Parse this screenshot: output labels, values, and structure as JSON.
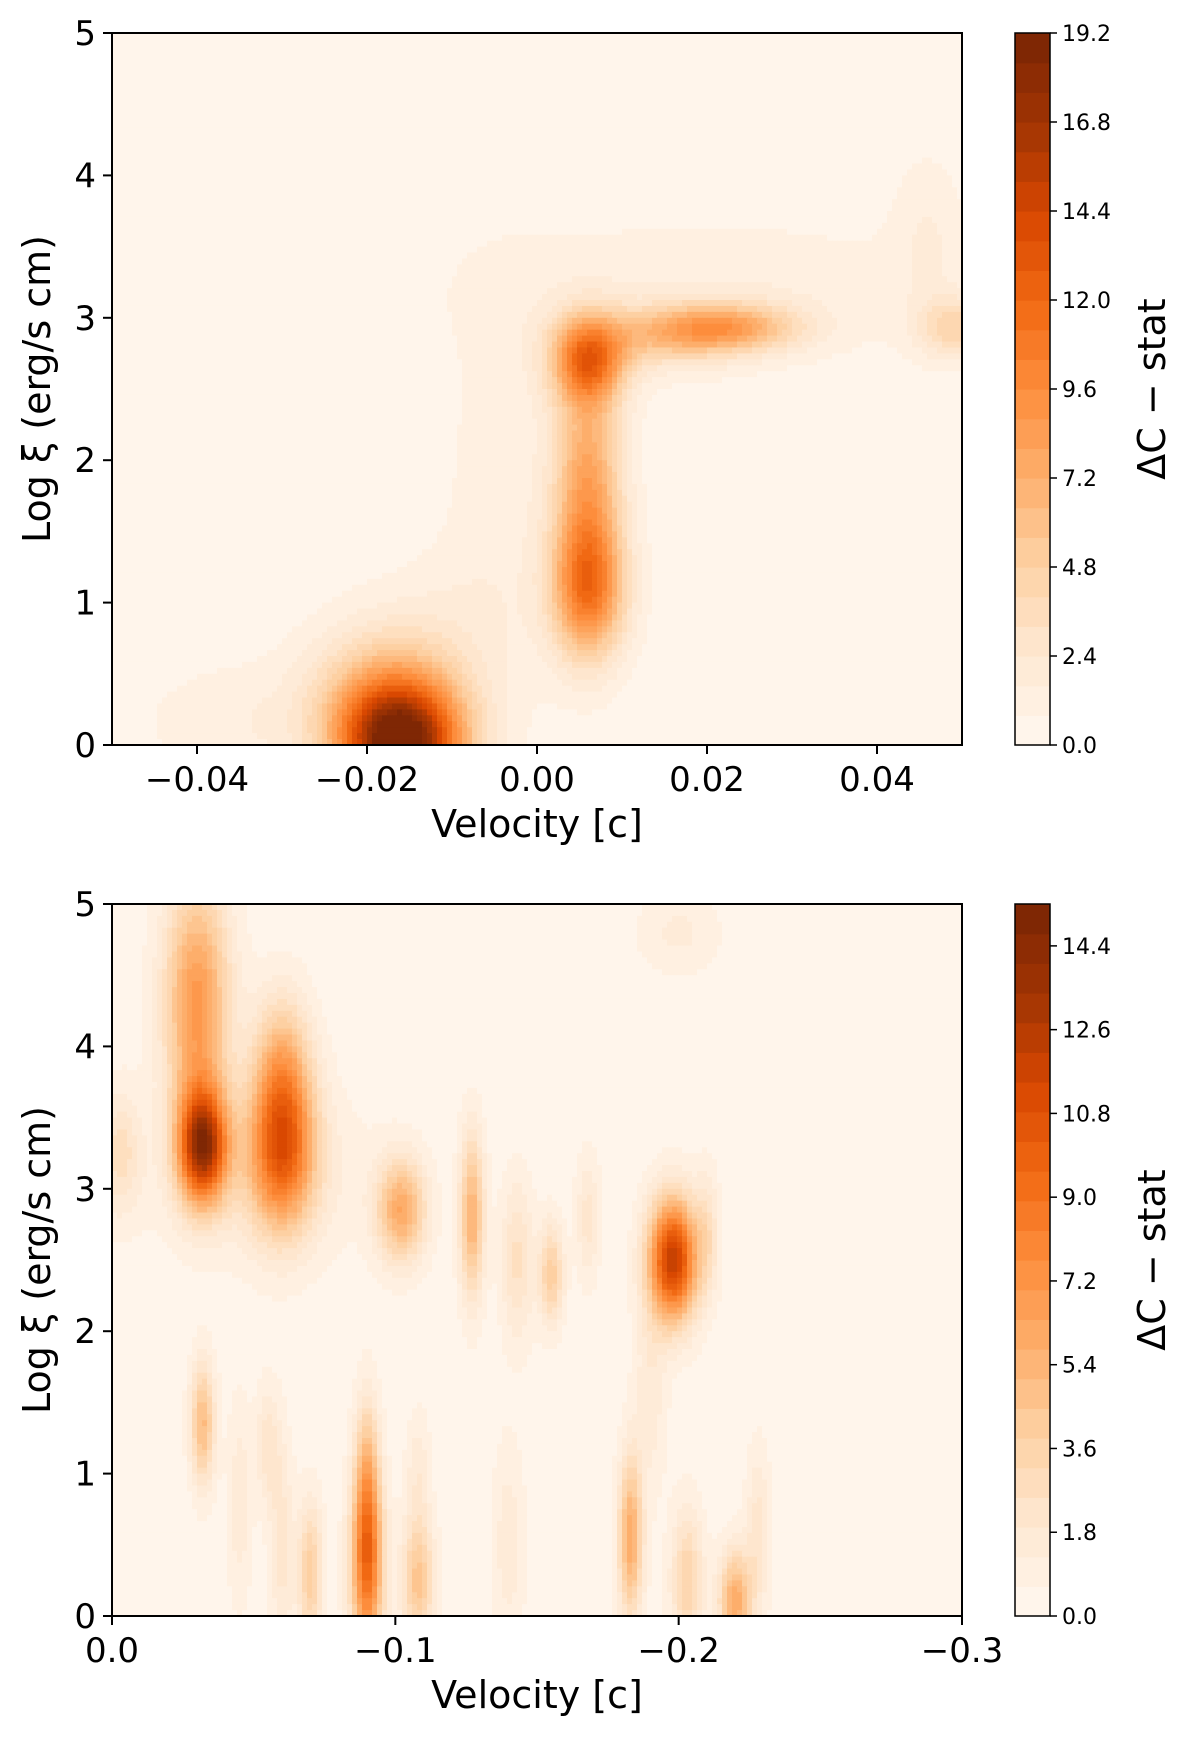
{
  "colors": {
    "cmap": [
      "#fff5eb",
      "#fee6ce",
      "#fdd0a2",
      "#fdae6b",
      "#fd8d3c",
      "#f16913",
      "#d94801",
      "#a63603",
      "#7f2704"
    ],
    "axis": "#000000"
  },
  "chart_data": [
    {
      "type": "heatmap",
      "xlabel": "Velocity [c]",
      "ylabel": "Log ξ (erg/s cm)",
      "xlim": [
        -0.05,
        0.05
      ],
      "ylim": [
        0,
        5
      ],
      "x_ticks": [
        -0.04,
        -0.02,
        0.0,
        0.02,
        0.04
      ],
      "x_tick_labels": [
        "−0.04",
        "−0.02",
        "0.00",
        "0.02",
        "0.04"
      ],
      "y_ticks": [
        0,
        1,
        2,
        3,
        4,
        5
      ],
      "y_tick_labels": [
        "0",
        "1",
        "2",
        "3",
        "4",
        "5"
      ],
      "colorbar": {
        "label": "ΔC − stat",
        "range": [
          0,
          19.2
        ],
        "ticks": [
          0.0,
          2.4,
          4.8,
          7.2,
          9.6,
          12.0,
          14.4,
          16.8,
          19.2
        ],
        "tick_labels": [
          "0.0",
          "2.4",
          "4.8",
          "7.2",
          "9.6",
          "12.0",
          "14.4",
          "16.8",
          "19.2"
        ]
      },
      "peaks": [
        {
          "x": -0.016,
          "y": 0.0,
          "value": 19.0,
          "sx": 0.005,
          "sy": 0.3
        },
        {
          "x": -0.018,
          "y": 0.35,
          "value": 5.0,
          "sx": 0.006,
          "sy": 0.35
        },
        {
          "x": -0.035,
          "y": 0.15,
          "value": 1.2,
          "sx": 0.008,
          "sy": 0.3
        },
        {
          "x": 0.006,
          "y": 2.7,
          "value": 11.0,
          "sx": 0.003,
          "sy": 0.22
        },
        {
          "x": 0.006,
          "y": 1.1,
          "value": 11.0,
          "sx": 0.003,
          "sy": 0.35
        },
        {
          "x": 0.006,
          "y": 1.9,
          "value": 7.5,
          "sx": 0.0028,
          "sy": 0.45
        },
        {
          "x": 0.022,
          "y": 2.93,
          "value": 7.5,
          "sx": 0.006,
          "sy": 0.12
        },
        {
          "x": 0.014,
          "y": 2.85,
          "value": 3.5,
          "sx": 0.006,
          "sy": 0.15
        },
        {
          "x": 0.049,
          "y": 2.93,
          "value": 4.0,
          "sx": 0.003,
          "sy": 0.15
        },
        {
          "x": 0.046,
          "y": 3.6,
          "value": 1.2,
          "sx": 0.003,
          "sy": 0.4
        },
        {
          "x": 0.02,
          "y": 3.2,
          "value": 1.2,
          "sx": 0.02,
          "sy": 0.35
        },
        {
          "x": -0.004,
          "y": 1.8,
          "value": 1.0,
          "sx": 0.005,
          "sy": 1.0
        },
        {
          "x": -0.01,
          "y": 0.8,
          "value": 1.0,
          "sx": 0.006,
          "sy": 0.4
        }
      ]
    },
    {
      "type": "heatmap",
      "xlabel": "Velocity [c]",
      "ylabel": "Log ξ (erg/s cm)",
      "xlim": [
        0.0,
        -0.3
      ],
      "ylim": [
        0,
        5
      ],
      "x_ticks": [
        0.0,
        -0.1,
        -0.2,
        -0.3
      ],
      "x_tick_labels": [
        "0.0",
        "−0.1",
        "−0.2",
        "−0.3"
      ],
      "y_ticks": [
        0,
        1,
        2,
        3,
        4,
        5
      ],
      "y_tick_labels": [
        "0",
        "1",
        "2",
        "3",
        "4",
        "5"
      ],
      "colorbar": {
        "label": "ΔC − stat",
        "range": [
          0,
          15.3
        ],
        "ticks": [
          0.0,
          1.8,
          3.6,
          5.4,
          7.2,
          9.0,
          10.8,
          12.6,
          14.4
        ],
        "tick_labels": [
          "0.0",
          "1.8",
          "3.6",
          "5.4",
          "7.2",
          "9.0",
          "10.8",
          "12.6",
          "14.4"
        ]
      },
      "peaks": [
        {
          "x": -0.032,
          "y": 3.3,
          "value": 13.0,
          "sx": 0.006,
          "sy": 0.28
        },
        {
          "x": -0.03,
          "y": 4.3,
          "value": 7.0,
          "sx": 0.008,
          "sy": 0.6
        },
        {
          "x": -0.052,
          "y": 3.1,
          "value": 1.5,
          "sx": 0.025,
          "sy": 0.4
        },
        {
          "x": -0.003,
          "y": 3.25,
          "value": 2.5,
          "sx": 0.005,
          "sy": 0.3
        },
        {
          "x": -0.06,
          "y": 3.3,
          "value": 9.5,
          "sx": 0.008,
          "sy": 0.4
        },
        {
          "x": -0.06,
          "y": 3.9,
          "value": 4.0,
          "sx": 0.007,
          "sy": 0.35
        },
        {
          "x": -0.102,
          "y": 2.85,
          "value": 6.0,
          "sx": 0.006,
          "sy": 0.25
        },
        {
          "x": -0.127,
          "y": 2.8,
          "value": 5.5,
          "sx": 0.003,
          "sy": 0.4
        },
        {
          "x": -0.143,
          "y": 2.5,
          "value": 2.5,
          "sx": 0.004,
          "sy": 0.4
        },
        {
          "x": -0.155,
          "y": 2.4,
          "value": 4.0,
          "sx": 0.003,
          "sy": 0.25
        },
        {
          "x": -0.168,
          "y": 2.8,
          "value": 2.0,
          "sx": 0.003,
          "sy": 0.3
        },
        {
          "x": -0.198,
          "y": 2.5,
          "value": 12.5,
          "sx": 0.006,
          "sy": 0.3
        },
        {
          "x": -0.21,
          "y": 2.7,
          "value": 2.0,
          "sx": 0.003,
          "sy": 0.3
        },
        {
          "x": -0.032,
          "y": 1.35,
          "value": 5.0,
          "sx": 0.003,
          "sy": 0.3
        },
        {
          "x": -0.045,
          "y": 0.8,
          "value": 1.5,
          "sx": 0.003,
          "sy": 0.5
        },
        {
          "x": -0.055,
          "y": 1.2,
          "value": 2.0,
          "sx": 0.003,
          "sy": 0.3
        },
        {
          "x": -0.06,
          "y": 0.5,
          "value": 2.0,
          "sx": 0.003,
          "sy": 0.5
        },
        {
          "x": -0.07,
          "y": 0.3,
          "value": 4.0,
          "sx": 0.003,
          "sy": 0.35
        },
        {
          "x": -0.09,
          "y": 0.35,
          "value": 9.0,
          "sx": 0.004,
          "sy": 0.45
        },
        {
          "x": -0.09,
          "y": 1.0,
          "value": 4.0,
          "sx": 0.003,
          "sy": 0.4
        },
        {
          "x": -0.108,
          "y": 0.25,
          "value": 4.5,
          "sx": 0.004,
          "sy": 0.3
        },
        {
          "x": -0.108,
          "y": 1.0,
          "value": 1.5,
          "sx": 0.003,
          "sy": 0.3
        },
        {
          "x": -0.14,
          "y": 0.5,
          "value": 1.5,
          "sx": 0.004,
          "sy": 0.5
        },
        {
          "x": -0.183,
          "y": 0.55,
          "value": 6.0,
          "sx": 0.003,
          "sy": 0.4
        },
        {
          "x": -0.19,
          "y": 1.6,
          "value": 1.5,
          "sx": 0.004,
          "sy": 0.5
        },
        {
          "x": -0.203,
          "y": 0.25,
          "value": 3.5,
          "sx": 0.004,
          "sy": 0.35
        },
        {
          "x": -0.22,
          "y": 0.1,
          "value": 6.0,
          "sx": 0.004,
          "sy": 0.25
        },
        {
          "x": -0.228,
          "y": 0.6,
          "value": 2.0,
          "sx": 0.003,
          "sy": 0.4
        },
        {
          "x": -0.2,
          "y": 4.8,
          "value": 1.2,
          "sx": 0.01,
          "sy": 0.2
        }
      ]
    }
  ]
}
